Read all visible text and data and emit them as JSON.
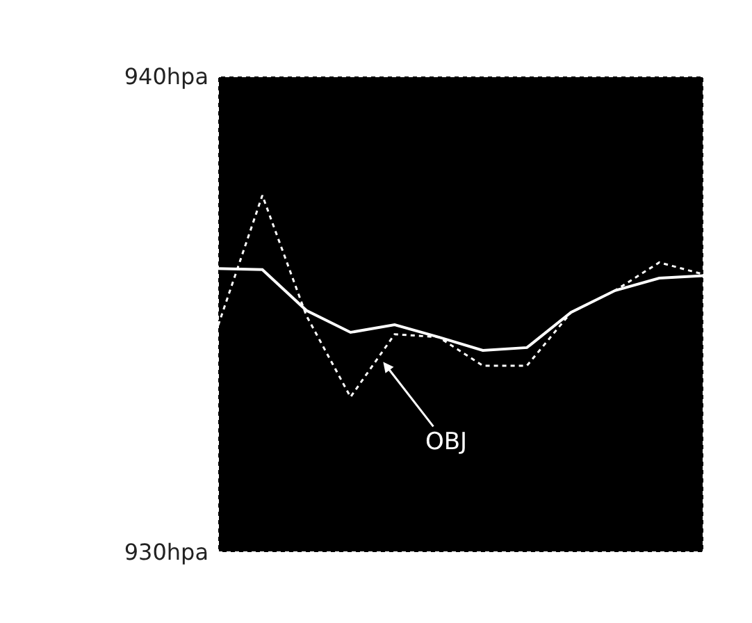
{
  "chart_data": {
    "type": "line",
    "categories": [
      null,
      null,
      null,
      null,
      null,
      null,
      null,
      null,
      null,
      null,
      null,
      null
    ],
    "series": [
      {
        "color": "#ffffff",
        "line_style": "solid",
        "values": [
          935.96,
          935.94,
          935.08,
          934.62,
          934.78,
          934.52,
          934.24,
          934.3,
          935.04,
          935.5,
          935.76,
          935.81
        ]
      },
      {
        "color": "#ffffff",
        "line_style": "dotted",
        "values": [
          934.77,
          937.5,
          934.97,
          933.26,
          934.58,
          934.52,
          933.92,
          933.92,
          935.04,
          935.5,
          936.09,
          935.84
        ]
      }
    ],
    "ylim": [
      930,
      940
    ],
    "yticks": [
      {
        "value": 930,
        "label": "930hpa"
      },
      {
        "value": 940,
        "label": "940hpa"
      }
    ],
    "annotations": [
      "OBJ"
    ],
    "marker": "none"
  }
}
